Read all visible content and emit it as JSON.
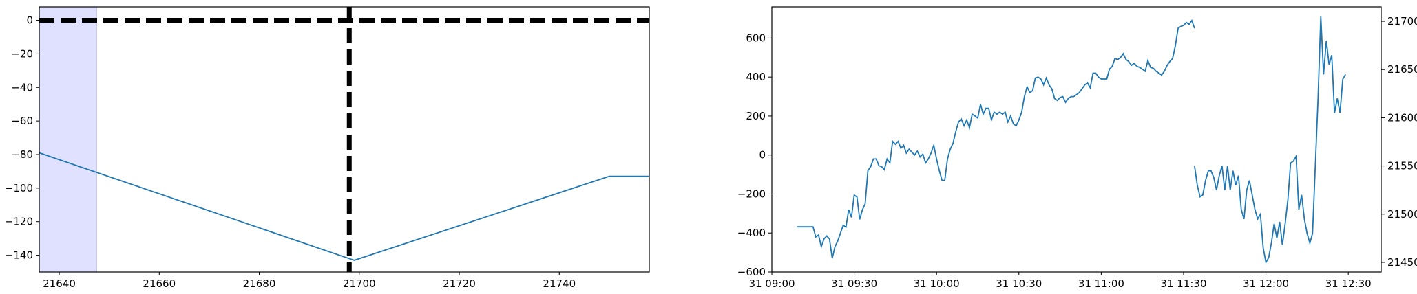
{
  "chart_data": [
    {
      "type": "line",
      "title": "",
      "xlabel": "",
      "ylabel": "",
      "xlim": [
        21636,
        21758
      ],
      "ylim": [
        -150,
        8
      ],
      "xticks": [
        21640,
        21660,
        21680,
        21700,
        21720,
        21740
      ],
      "yticks": [
        0,
        -20,
        -40,
        -60,
        -80,
        -100,
        -120,
        -140
      ],
      "grid": false,
      "series": [
        {
          "color": "#1f77b4",
          "points": [
            [
              21636,
              -79
            ],
            [
              21699,
              -143
            ],
            [
              21750,
              -93
            ],
            [
              21758,
              -93
            ]
          ]
        }
      ],
      "hline": {
        "y": 0,
        "style": "dashed",
        "color": "#000000"
      },
      "vline": {
        "x": 21698,
        "style": "dashed",
        "color": "#000000"
      },
      "shaded_span": {
        "x0": 21636,
        "x1": 21647.5,
        "color": "#e0e0ff"
      }
    },
    {
      "type": "line",
      "title": "",
      "xlabel": "",
      "ylabel": "",
      "xlim": [
        0,
        222
      ],
      "ylim_left": [
        -600,
        760
      ],
      "ylim_right": [
        21440,
        21715
      ],
      "xticks": [
        {
          "t": 0,
          "label": "31 09:00"
        },
        {
          "t": 30,
          "label": "31 09:30"
        },
        {
          "t": 60,
          "label": "31 10:00"
        },
        {
          "t": 90,
          "label": "31 10:30"
        },
        {
          "t": 120,
          "label": "31 11:00"
        },
        {
          "t": 150,
          "label": "31 11:30"
        },
        {
          "t": 180,
          "label": "31 12:00"
        },
        {
          "t": 210,
          "label": "31 12:30"
        }
      ],
      "yticks_left": [
        600,
        400,
        200,
        0,
        -200,
        -400,
        -600
      ],
      "yticks_right": [
        21700,
        21650,
        21600,
        21550,
        21500,
        21450
      ],
      "grid": false,
      "series": [
        {
          "axis": "left",
          "color": "#1f77b4",
          "points": [
            [
              9,
              -368
            ],
            [
              10,
              -368
            ],
            [
              11,
              -368
            ],
            [
              12,
              -368
            ],
            [
              13,
              -368
            ],
            [
              14,
              -368
            ],
            [
              15,
              -368
            ],
            [
              16,
              -420
            ],
            [
              17,
              -410
            ],
            [
              18,
              -470
            ],
            [
              19,
              -430
            ],
            [
              20,
              -415
            ],
            [
              21,
              -430
            ],
            [
              22,
              -530
            ],
            [
              23,
              -470
            ],
            [
              24,
              -440
            ],
            [
              25,
              -400
            ],
            [
              26,
              -360
            ],
            [
              27,
              -370
            ],
            [
              28,
              -280
            ],
            [
              29,
              -320
            ],
            [
              30,
              -205
            ],
            [
              31,
              -215
            ],
            [
              32,
              -330
            ],
            [
              33,
              -280
            ],
            [
              34,
              -250
            ],
            [
              35,
              -80
            ],
            [
              36,
              -60
            ],
            [
              37,
              -20
            ],
            [
              38,
              -20
            ],
            [
              39,
              -55
            ],
            [
              40,
              -60
            ],
            [
              41,
              -75
            ],
            [
              42,
              -20
            ],
            [
              43,
              -40
            ],
            [
              44,
              70
            ],
            [
              45,
              55
            ],
            [
              46,
              70
            ],
            [
              47,
              35
            ],
            [
              48,
              50
            ],
            [
              49,
              10
            ],
            [
              50,
              30
            ],
            [
              51,
              15
            ],
            [
              52,
              0
            ],
            [
              53,
              20
            ],
            [
              54,
              -10
            ],
            [
              55,
              5
            ],
            [
              56,
              -40
            ],
            [
              57,
              -20
            ],
            [
              58,
              10
            ],
            [
              59,
              50
            ],
            [
              60,
              -20
            ],
            [
              61,
              -80
            ],
            [
              62,
              -130
            ],
            [
              63,
              -130
            ],
            [
              64,
              -20
            ],
            [
              65,
              30
            ],
            [
              66,
              60
            ],
            [
              67,
              120
            ],
            [
              68,
              170
            ],
            [
              69,
              185
            ],
            [
              70,
              150
            ],
            [
              71,
              180
            ],
            [
              72,
              140
            ],
            [
              73,
              210
            ],
            [
              74,
              200
            ],
            [
              75,
              190
            ],
            [
              76,
              260
            ],
            [
              77,
              210
            ],
            [
              78,
              240
            ],
            [
              79,
              240
            ],
            [
              80,
              180
            ],
            [
              81,
              220
            ],
            [
              82,
              210
            ],
            [
              83,
              220
            ],
            [
              84,
              210
            ],
            [
              85,
              220
            ],
            [
              86,
              170
            ],
            [
              87,
              200
            ],
            [
              88,
              160
            ],
            [
              89,
              150
            ],
            [
              90,
              180
            ],
            [
              91,
              220
            ],
            [
              92,
              300
            ],
            [
              93,
              350
            ],
            [
              94,
              320
            ],
            [
              95,
              330
            ],
            [
              96,
              395
            ],
            [
              97,
              400
            ],
            [
              98,
              390
            ],
            [
              99,
              360
            ],
            [
              100,
              395
            ],
            [
              101,
              360
            ],
            [
              102,
              340
            ],
            [
              103,
              290
            ],
            [
              104,
              280
            ],
            [
              105,
              295
            ],
            [
              106,
              300
            ],
            [
              107,
              270
            ],
            [
              108,
              290
            ],
            [
              109,
              300
            ],
            [
              110,
              300
            ],
            [
              111,
              310
            ],
            [
              112,
              320
            ],
            [
              113,
              340
            ],
            [
              114,
              360
            ],
            [
              115,
              370
            ],
            [
              116,
              345
            ],
            [
              117,
              420
            ],
            [
              118,
              420
            ],
            [
              119,
              400
            ],
            [
              120,
              390
            ],
            [
              121,
              390
            ],
            [
              122,
              390
            ],
            [
              123,
              440
            ],
            [
              124,
              455
            ],
            [
              125,
              495
            ],
            [
              126,
              490
            ],
            [
              127,
              500
            ],
            [
              128,
              520
            ],
            [
              129,
              490
            ],
            [
              130,
              480
            ],
            [
              131,
              460
            ],
            [
              132,
              470
            ],
            [
              133,
              455
            ],
            [
              134,
              450
            ],
            [
              135,
              440
            ],
            [
              136,
              430
            ],
            [
              137,
              485
            ],
            [
              138,
              450
            ],
            [
              139,
              445
            ],
            [
              140,
              430
            ],
            [
              141,
              420
            ],
            [
              142,
              410
            ],
            [
              143,
              430
            ],
            [
              144,
              460
            ],
            [
              145,
              480
            ],
            [
              146,
              495
            ],
            [
              147,
              560
            ],
            [
              148,
              650
            ],
            [
              149,
              660
            ],
            [
              150,
              665
            ],
            [
              151,
              680
            ],
            [
              152,
              670
            ],
            [
              153,
              690
            ],
            [
              154,
              650
            ]
          ]
        },
        {
          "axis": "right",
          "color": "#1f77b4",
          "points": [
            [
              154,
              21550
            ],
            [
              155,
              21530
            ],
            [
              156,
              21518
            ],
            [
              157,
              21520
            ],
            [
              158,
              21535
            ],
            [
              159,
              21545
            ],
            [
              160,
              21545
            ],
            [
              161,
              21538
            ],
            [
              162,
              21525
            ],
            [
              163,
              21540
            ],
            [
              164,
              21550
            ],
            [
              165,
              21525
            ],
            [
              166,
              21550
            ],
            [
              167,
              21525
            ],
            [
              168,
              21545
            ],
            [
              169,
              21530
            ],
            [
              170,
              21540
            ],
            [
              171,
              21505
            ],
            [
              172,
              21495
            ],
            [
              173,
              21525
            ],
            [
              174,
              21535
            ],
            [
              175,
              21520
            ],
            [
              176,
              21505
            ],
            [
              177,
              21495
            ],
            [
              178,
              21500
            ],
            [
              179,
              21465
            ],
            [
              180,
              21450
            ],
            [
              181,
              21455
            ],
            [
              182,
              21470
            ],
            [
              183,
              21490
            ],
            [
              184,
              21475
            ],
            [
              185,
              21492
            ],
            [
              186,
              21468
            ],
            [
              187,
              21490
            ],
            [
              188,
              21515
            ],
            [
              189,
              21553
            ],
            [
              190,
              21555
            ],
            [
              191,
              21560
            ],
            [
              192,
              21505
            ],
            [
              193,
              21520
            ],
            [
              194,
              21495
            ],
            [
              195,
              21480
            ],
            [
              196,
              21470
            ],
            [
              197,
              21480
            ],
            [
              198,
              21550
            ],
            [
              199,
              21620
            ],
            [
              200,
              21705
            ],
            [
              201,
              21645
            ],
            [
              202,
              21680
            ],
            [
              203,
              21655
            ],
            [
              204,
              21665
            ],
            [
              205,
              21605
            ],
            [
              206,
              21620
            ],
            [
              207,
              21605
            ],
            [
              208,
              21640
            ],
            [
              209,
              21645
            ]
          ]
        }
      ]
    }
  ]
}
